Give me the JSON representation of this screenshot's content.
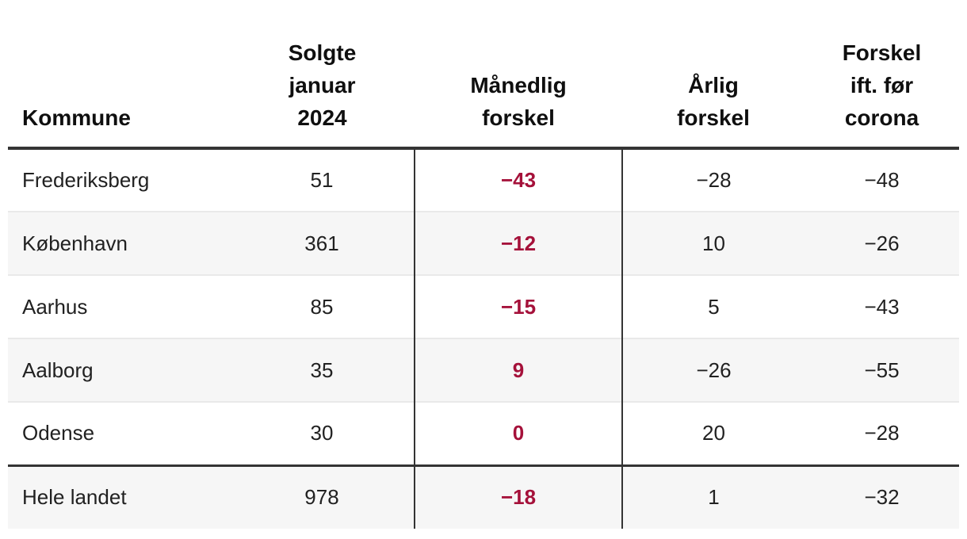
{
  "colors": {
    "accent_red": "#a5113a",
    "dark_line": "#343434",
    "stripe_background": "#f6f6f6",
    "row_separator": "#e9e9e9",
    "text": "#212121"
  },
  "table": {
    "columns": [
      {
        "label": "Kommune"
      },
      {
        "label": "Solgte\njanuar\n2024"
      },
      {
        "label": "Månedlig\nforskel"
      },
      {
        "label": "Årlig\nforskel"
      },
      {
        "label": "Forskel\nift. før\ncorona"
      }
    ],
    "rows": [
      {
        "cells": [
          "Frederiksberg",
          "51",
          "−43",
          "−28",
          "−48"
        ],
        "total": false
      },
      {
        "cells": [
          "København",
          "361",
          "−12",
          "10",
          "−26"
        ],
        "total": false
      },
      {
        "cells": [
          "Aarhus",
          "85",
          "−15",
          "5",
          "−43"
        ],
        "total": false
      },
      {
        "cells": [
          "Aalborg",
          "35",
          "9",
          "−26",
          "−55"
        ],
        "total": false
      },
      {
        "cells": [
          "Odense",
          "30",
          "0",
          "20",
          "−28"
        ],
        "total": false
      },
      {
        "cells": [
          "Hele landet",
          "978",
          "−18",
          "1",
          "−32"
        ],
        "total": true
      }
    ]
  },
  "chart_data": {
    "type": "table",
    "columns": [
      "Kommune",
      "Solgte januar 2024",
      "Månedlig forskel",
      "Årlig forskel",
      "Forskel ift. før corona"
    ],
    "rows": [
      [
        "Frederiksberg",
        51,
        -43,
        -28,
        -48
      ],
      [
        "København",
        361,
        -12,
        10,
        -26
      ],
      [
        "Aarhus",
        85,
        -15,
        5,
        -43
      ],
      [
        "Aalborg",
        35,
        9,
        -26,
        -55
      ],
      [
        "Odense",
        30,
        0,
        20,
        -28
      ],
      [
        "Hele landet",
        978,
        -18,
        1,
        -32
      ]
    ],
    "notes": {
      "highlight_column": "Månedlig forskel",
      "highlight_style": "bold crimson text with dark vertical rules",
      "total_row": "Hele landet"
    }
  }
}
